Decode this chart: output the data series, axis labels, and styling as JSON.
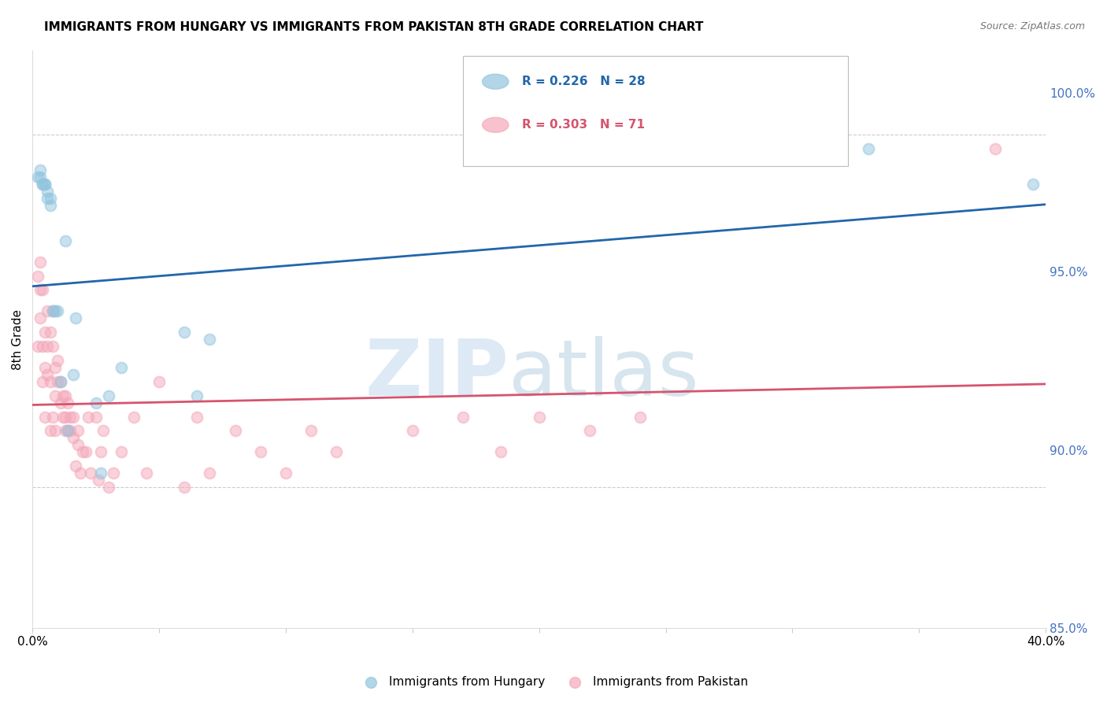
{
  "title": "IMMIGRANTS FROM HUNGARY VS IMMIGRANTS FROM PAKISTAN 8TH GRADE CORRELATION CHART",
  "source": "Source: ZipAtlas.com",
  "ylabel": "8th Grade",
  "legend_hungary": "Immigrants from Hungary",
  "legend_pakistan": "Immigrants from Pakistan",
  "R_hungary": 0.226,
  "N_hungary": 28,
  "R_pakistan": 0.303,
  "N_pakistan": 71,
  "xlim": [
    0.0,
    0.4
  ],
  "ylim": [
    0.93,
    1.012
  ],
  "xtick_positions": [
    0.0,
    0.05,
    0.1,
    0.15,
    0.2,
    0.25,
    0.3,
    0.35,
    0.4
  ],
  "xtick_labels": [
    "0.0%",
    "",
    "",
    "",
    "",
    "",
    "",
    "",
    "40.0%"
  ],
  "ytick_positions": [
    0.85,
    0.9,
    0.95,
    1.0
  ],
  "ytick_labels": [
    "85.0%",
    "90.0%",
    "95.0%",
    "100.0%"
  ],
  "color_hungary": "#92c5de",
  "color_pakistan": "#f4a7b9",
  "trendline_hungary": "#2166ac",
  "trendline_pakistan": "#d6546e",
  "hungary_x": [
    0.002,
    0.003,
    0.003,
    0.004,
    0.004,
    0.005,
    0.005,
    0.006,
    0.006,
    0.007,
    0.007,
    0.008,
    0.009,
    0.01,
    0.011,
    0.013,
    0.014,
    0.016,
    0.017,
    0.025,
    0.027,
    0.03,
    0.035,
    0.06,
    0.065,
    0.07,
    0.33,
    0.395
  ],
  "hungary_y": [
    0.994,
    0.994,
    0.995,
    0.993,
    0.993,
    0.993,
    0.993,
    0.992,
    0.991,
    0.991,
    0.99,
    0.975,
    0.975,
    0.975,
    0.965,
    0.985,
    0.958,
    0.966,
    0.974,
    0.962,
    0.952,
    0.963,
    0.967,
    0.972,
    0.963,
    0.971,
    0.998,
    0.993
  ],
  "pakistan_x": [
    0.002,
    0.002,
    0.003,
    0.003,
    0.003,
    0.004,
    0.004,
    0.004,
    0.005,
    0.005,
    0.005,
    0.006,
    0.006,
    0.006,
    0.007,
    0.007,
    0.007,
    0.008,
    0.008,
    0.008,
    0.009,
    0.009,
    0.009,
    0.01,
    0.01,
    0.011,
    0.011,
    0.012,
    0.012,
    0.013,
    0.013,
    0.013,
    0.014,
    0.014,
    0.015,
    0.015,
    0.016,
    0.016,
    0.017,
    0.018,
    0.018,
    0.019,
    0.02,
    0.021,
    0.022,
    0.023,
    0.025,
    0.026,
    0.027,
    0.028,
    0.03,
    0.032,
    0.035,
    0.04,
    0.045,
    0.05,
    0.06,
    0.065,
    0.07,
    0.08,
    0.09,
    0.1,
    0.11,
    0.12,
    0.15,
    0.17,
    0.185,
    0.2,
    0.22,
    0.24,
    0.38
  ],
  "pakistan_y": [
    0.97,
    0.98,
    0.974,
    0.978,
    0.982,
    0.965,
    0.97,
    0.978,
    0.972,
    0.967,
    0.96,
    0.966,
    0.97,
    0.975,
    0.972,
    0.965,
    0.958,
    0.96,
    0.97,
    0.975,
    0.963,
    0.967,
    0.958,
    0.965,
    0.968,
    0.962,
    0.965,
    0.96,
    0.963,
    0.958,
    0.96,
    0.963,
    0.962,
    0.958,
    0.958,
    0.96,
    0.957,
    0.96,
    0.953,
    0.956,
    0.958,
    0.952,
    0.955,
    0.955,
    0.96,
    0.952,
    0.96,
    0.951,
    0.955,
    0.958,
    0.95,
    0.952,
    0.955,
    0.96,
    0.952,
    0.965,
    0.95,
    0.96,
    0.952,
    0.958,
    0.955,
    0.952,
    0.958,
    0.955,
    0.958,
    0.96,
    0.955,
    0.96,
    0.958,
    0.96,
    0.998
  ]
}
